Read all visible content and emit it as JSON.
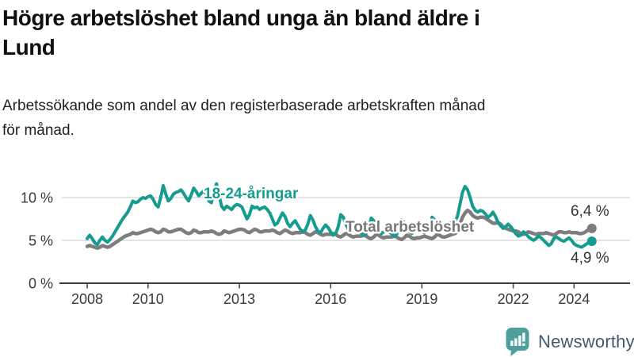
{
  "title": {
    "text": "Högre arbetslöshet bland unga än bland äldre i Lund",
    "lines": [
      "Högre arbetslöshet bland unga än bland äldre i",
      "Lund"
    ]
  },
  "subtitle": {
    "text": "Arbetssökande som andel av den registerbaserade arbetskraften månad för månad.",
    "lines": [
      "Arbetssökande som andel av den registerbaserade arbetskraften månad",
      "för månad."
    ]
  },
  "branding": {
    "logo_text": "Newsworthy",
    "logo_color": "#4e9f9b",
    "logo_text_color": "#3f5a70"
  },
  "chart_data": {
    "type": "line",
    "title": "Högre arbetslöshet bland unga än bland äldre i Lund",
    "subtitle": "Arbetssökande som andel av den registerbaserade arbetskraften månad för månad.",
    "x_unit": "month",
    "x_start": "2008-01",
    "x_end": "2024-08",
    "ylim": [
      0,
      12
    ],
    "grid": "horizontal",
    "legend_position": "inline-labels",
    "colors": {
      "grid": "#dcdcdc",
      "axis": "#3c3c3c",
      "tick_text": "#3a3a3a",
      "value_label": "#333333"
    },
    "yticks": [
      {
        "value": 0,
        "label": "0 %"
      },
      {
        "value": 5,
        "label": "5 %"
      },
      {
        "value": 10,
        "label": "10 %"
      }
    ],
    "xticks": [
      {
        "year": 2008,
        "label": "2008"
      },
      {
        "year": 2010,
        "label": "2010"
      },
      {
        "year": 2013,
        "label": "2013"
      },
      {
        "year": 2016,
        "label": "2016"
      },
      {
        "year": 2019,
        "label": "2019"
      },
      {
        "year": 2022,
        "label": "2022"
      },
      {
        "year": 2024,
        "label": "2024"
      }
    ],
    "series": [
      {
        "id": "total",
        "name": "Total arbetslöshet",
        "color": "#7d7d7d",
        "label_color": "#777777",
        "line_width": 4.5,
        "end_label": "6,4 %",
        "end_value": 6.4,
        "values": [
          4.3,
          4.4,
          4.3,
          4.2,
          4.1,
          4.2,
          4.4,
          4.3,
          4.2,
          4.3,
          4.5,
          4.7,
          4.9,
          5.1,
          5.3,
          5.5,
          5.6,
          5.7,
          5.9,
          5.8,
          5.8,
          5.9,
          6.0,
          6.1,
          6.2,
          6.3,
          6.2,
          6.0,
          5.9,
          6.0,
          6.3,
          6.2,
          6.0,
          6.0,
          6.1,
          6.2,
          6.3,
          6.3,
          6.1,
          5.9,
          5.8,
          5.9,
          6.2,
          6.1,
          5.9,
          5.9,
          6.0,
          6.0,
          6.0,
          6.1,
          6.0,
          5.8,
          5.7,
          5.8,
          6.1,
          6.0,
          5.9,
          6.0,
          6.1,
          6.2,
          6.3,
          6.3,
          6.2,
          6.0,
          5.9,
          6.1,
          6.3,
          6.2,
          6.0,
          6.0,
          6.1,
          6.1,
          6.1,
          6.2,
          6.1,
          5.9,
          5.8,
          6.0,
          6.2,
          6.1,
          5.9,
          5.8,
          5.9,
          5.9,
          5.9,
          6.0,
          5.9,
          5.7,
          5.6,
          5.8,
          6.0,
          5.9,
          5.7,
          5.6,
          5.7,
          5.7,
          5.7,
          5.8,
          5.7,
          5.5,
          5.4,
          5.6,
          5.8,
          5.7,
          5.5,
          5.4,
          5.5,
          5.5,
          5.5,
          5.6,
          5.5,
          5.3,
          5.2,
          5.4,
          5.7,
          5.6,
          5.4,
          5.3,
          5.4,
          5.4,
          5.4,
          5.5,
          5.4,
          5.2,
          5.1,
          5.3,
          5.6,
          5.5,
          5.3,
          5.2,
          5.3,
          5.3,
          5.4,
          5.5,
          5.4,
          5.3,
          5.2,
          5.4,
          5.7,
          5.6,
          5.4,
          5.4,
          5.5,
          5.6,
          5.7,
          5.8,
          6.0,
          6.9,
          7.7,
          8.2,
          8.5,
          8.3,
          7.9,
          7.7,
          7.6,
          7.7,
          7.7,
          7.6,
          7.4,
          7.2,
          7.0,
          7.0,
          7.1,
          6.9,
          6.6,
          6.4,
          6.3,
          6.2,
          6.1,
          6.1,
          6.0,
          5.8,
          5.7,
          5.8,
          6.0,
          5.9,
          5.8,
          5.7,
          5.8,
          5.8,
          5.8,
          5.9,
          5.8,
          5.7,
          5.6,
          5.8,
          6.0,
          6.0,
          5.9,
          5.9,
          6.0,
          5.9,
          5.9,
          5.9,
          5.8,
          5.8,
          5.9,
          6.1,
          6.3,
          6.4
        ]
      },
      {
        "id": "youth",
        "name": "18-24-åringar",
        "color": "#169c8f",
        "label_color": "#169c8f",
        "line_width": 4,
        "end_label": "4,9 %",
        "end_value": 4.9,
        "values": [
          5.2,
          5.6,
          5.2,
          4.7,
          4.5,
          5.0,
          5.4,
          5.0,
          4.8,
          5.1,
          5.5,
          6.0,
          6.5,
          7.0,
          7.5,
          7.9,
          8.3,
          8.9,
          9.6,
          9.4,
          9.5,
          9.8,
          10.0,
          9.9,
          10.1,
          10.2,
          9.8,
          9.2,
          8.9,
          10.0,
          11.4,
          10.4,
          9.6,
          9.9,
          10.4,
          10.6,
          10.7,
          10.9,
          10.5,
          10.0,
          9.6,
          10.3,
          11.1,
          10.7,
          10.2,
          10.5,
          10.8,
          10.4,
          9.6,
          9.4,
          10.8,
          11.6,
          10.3,
          9.0,
          8.6,
          9.0,
          8.8,
          8.6,
          9.0,
          9.2,
          9.1,
          8.9,
          8.2,
          7.5,
          8.0,
          9.0,
          8.8,
          8.9,
          8.6,
          8.8,
          8.9,
          8.6,
          8.2,
          7.5,
          6.8,
          7.0,
          7.6,
          8.2,
          7.8,
          7.0,
          6.6,
          7.0,
          7.3,
          6.8,
          6.3,
          6.0,
          6.2,
          6.9,
          7.9,
          7.4,
          6.6,
          6.1,
          5.9,
          6.4,
          6.8,
          6.5,
          6.0,
          5.6,
          5.8,
          6.6,
          8.0,
          7.7,
          6.9,
          6.3,
          6.0,
          6.3,
          6.6,
          6.4,
          5.9,
          5.6,
          5.8,
          6.4,
          7.6,
          7.3,
          6.6,
          6.1,
          5.8,
          6.0,
          6.2,
          6.0,
          5.8,
          5.5,
          5.7,
          6.3,
          7.4,
          7.1,
          6.4,
          6.0,
          5.8,
          6.1,
          6.3,
          6.2,
          6.1,
          5.9,
          6.2,
          6.7,
          7.7,
          7.4,
          6.8,
          6.4,
          6.2,
          6.5,
          6.8,
          7.0,
          7.1,
          7.2,
          7.8,
          9.2,
          10.6,
          11.3,
          10.9,
          10.0,
          9.0,
          8.5,
          8.3,
          8.5,
          8.4,
          8.1,
          7.7,
          7.9,
          8.3,
          7.8,
          7.1,
          6.7,
          6.4,
          6.6,
          6.9,
          6.6,
          6.2,
          5.8,
          5.5,
          5.6,
          6.0,
          5.8,
          5.4,
          5.2,
          5.0,
          5.2,
          5.5,
          5.3,
          5.0,
          4.7,
          4.4,
          4.6,
          5.2,
          5.4,
          5.2,
          5.0,
          4.9,
          5.1,
          5.3,
          5.0,
          4.6,
          4.4,
          4.3,
          4.2,
          4.4,
          4.6,
          4.8,
          4.9
        ]
      }
    ]
  }
}
